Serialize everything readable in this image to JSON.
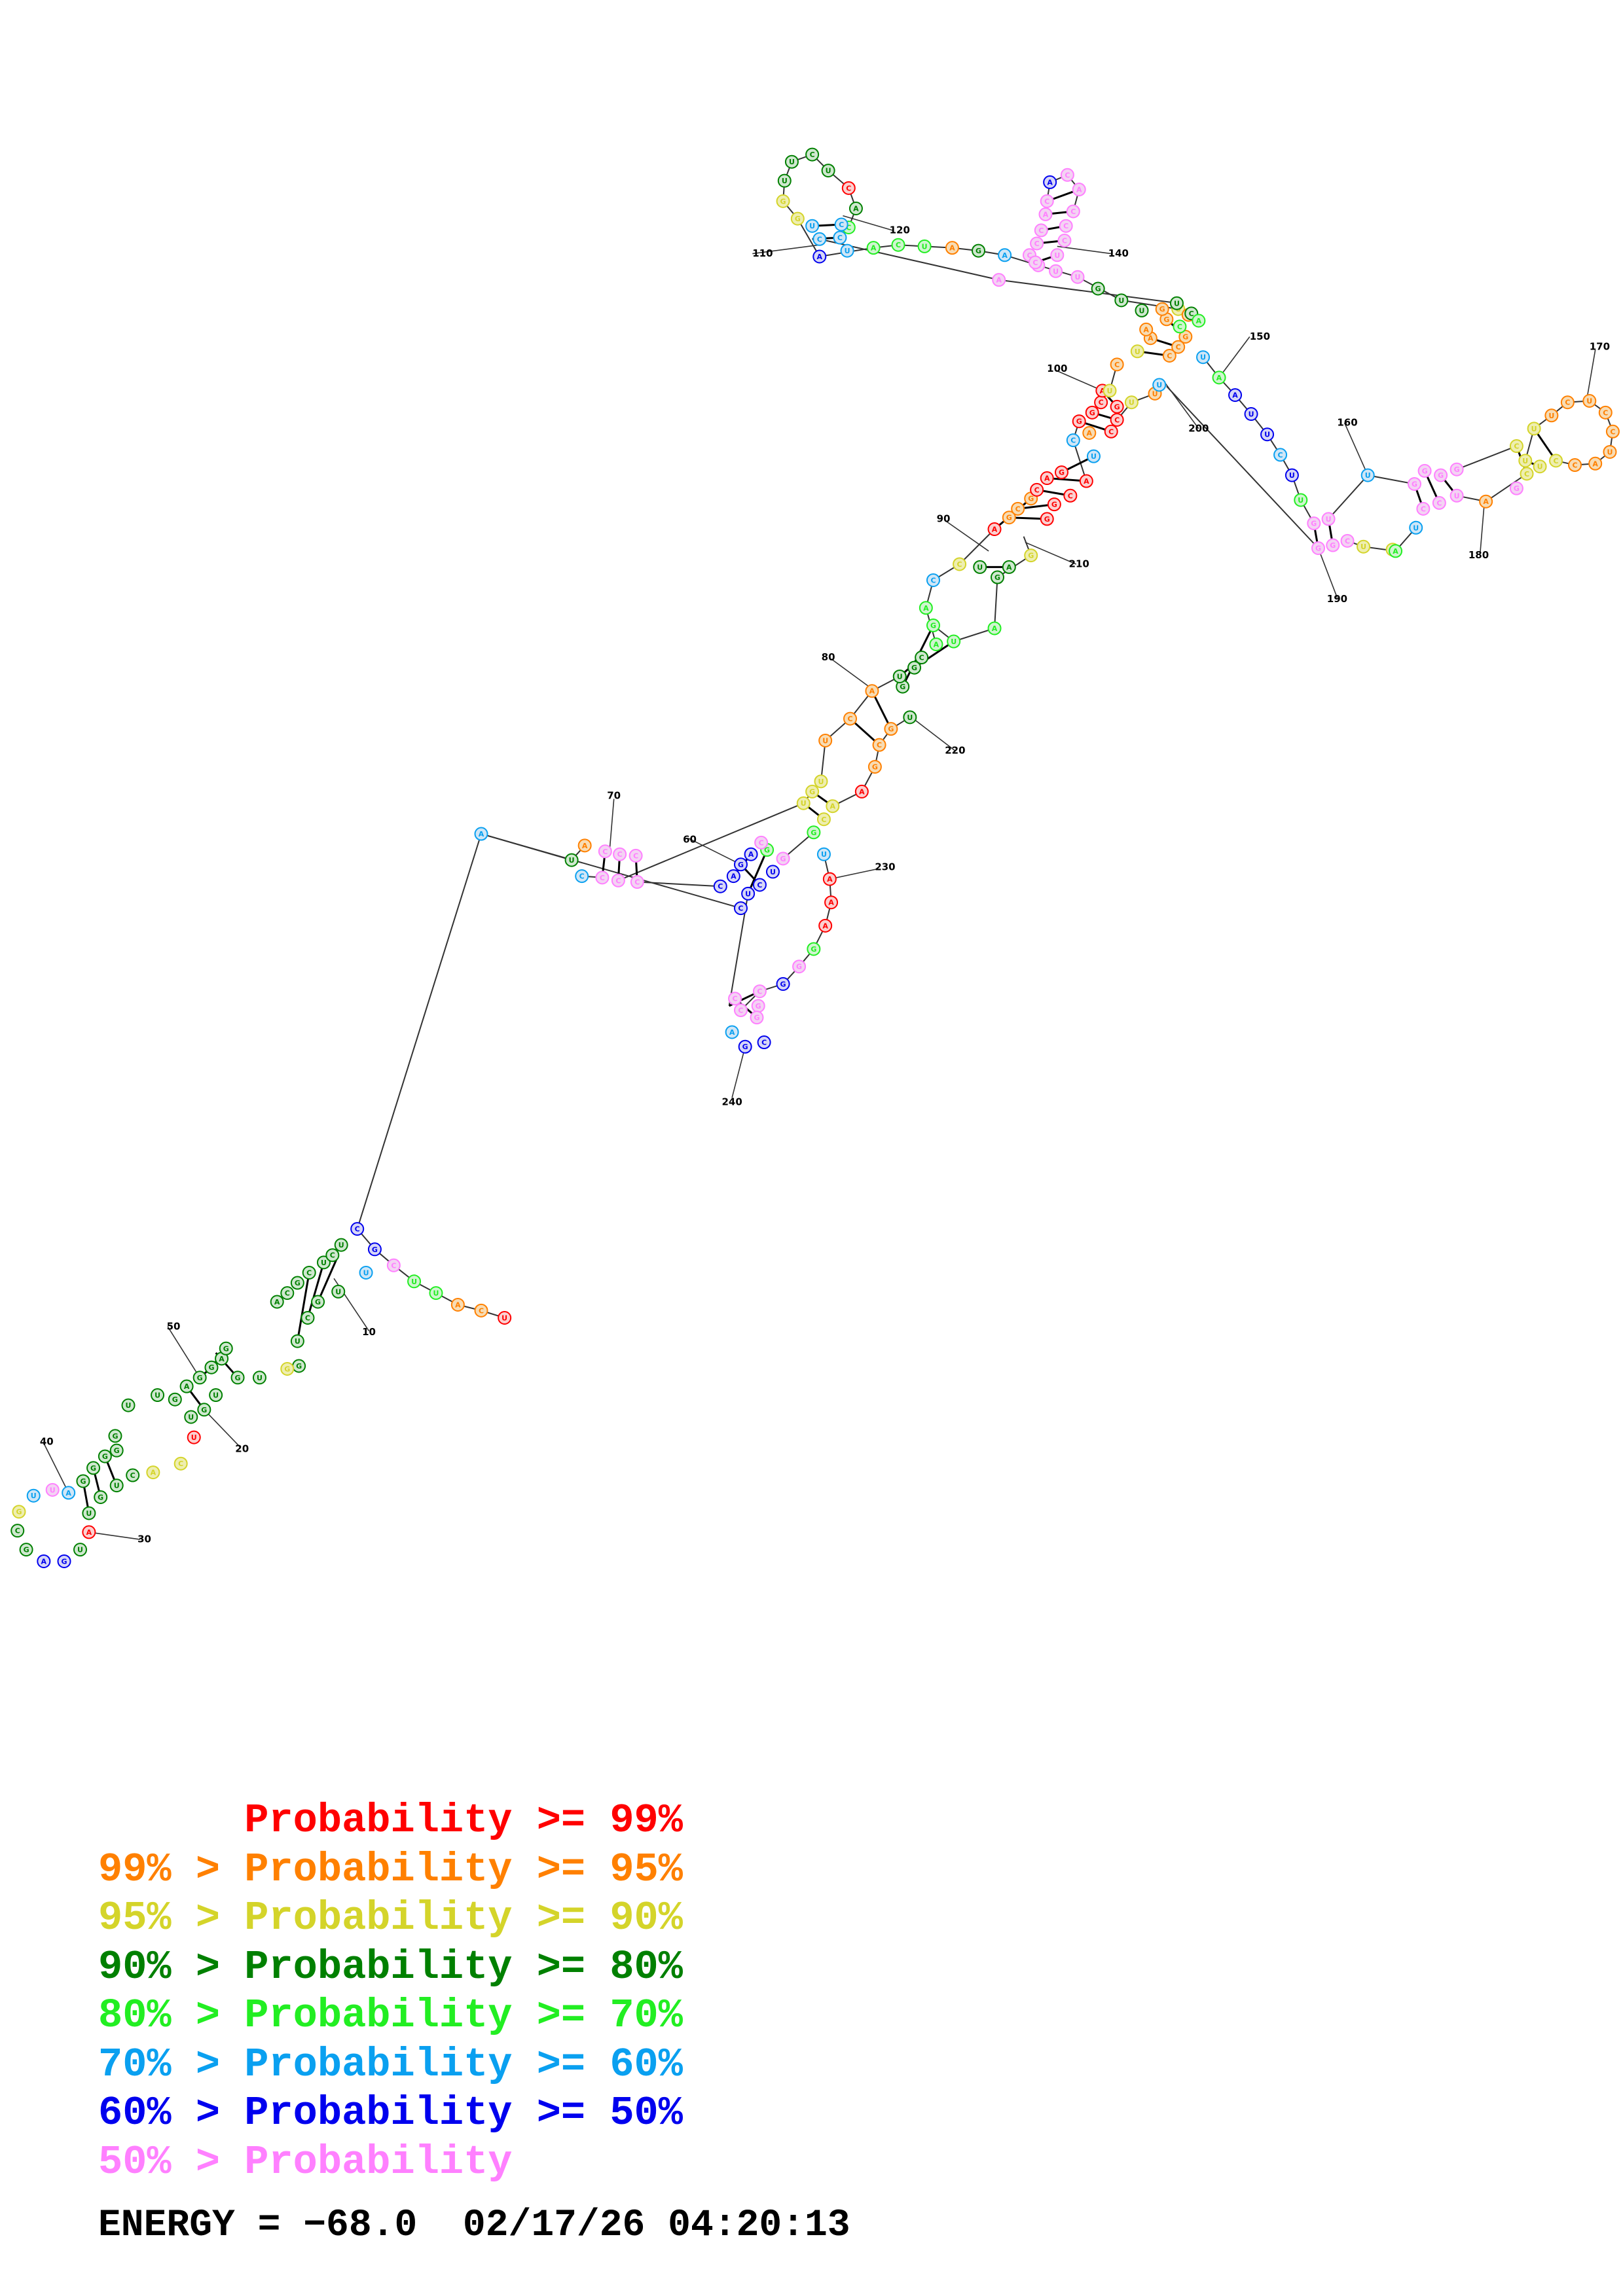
{
  "legend": {
    "rows": [
      {
        "prefix": "",
        "label": "Probability >= 99%",
        "color": "#ff0000"
      },
      {
        "prefix": "99% > ",
        "label": "Probability >= 95%",
        "color": "#ff8000"
      },
      {
        "prefix": "95% > ",
        "label": "Probability >= 90%",
        "color": "#d4d42a"
      },
      {
        "prefix": "90% > ",
        "label": "Probability >= 80%",
        "color": "#008000"
      },
      {
        "prefix": "80% > ",
        "label": "Probability >= 70%",
        "color": "#22ee22"
      },
      {
        "prefix": "70% > ",
        "label": "Probability >= 60%",
        "color": "#0aa0f0"
      },
      {
        "prefix": "60% > ",
        "label": "Probability >= 50%",
        "color": "#0000ee"
      },
      {
        "prefix": "50% > ",
        "label": "Probability",
        "color": "#ff80ff"
      }
    ]
  },
  "footer": {
    "energy": "ENERGY = −68.0",
    "timestamp": "02/17/26 04:20:13"
  },
  "diagram": {
    "position_labels": [
      "10",
      "20",
      "30",
      "40",
      "50",
      "60",
      "70",
      "80",
      "90",
      "100",
      "110",
      "120",
      "140",
      "150",
      "160",
      "170",
      "180",
      "190",
      "200",
      "210",
      "220",
      "230",
      "240"
    ]
  }
}
